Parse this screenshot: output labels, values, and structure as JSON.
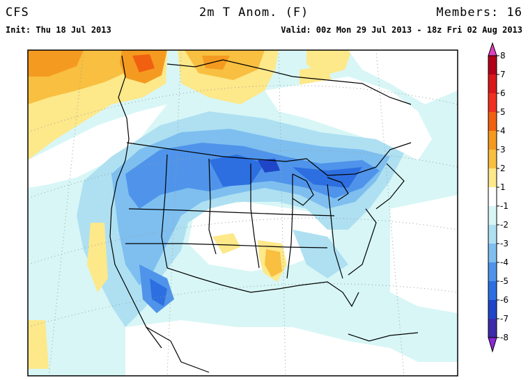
{
  "header": {
    "model": "CFS",
    "title": "2m T Anom. (F)",
    "members": "Members: 16",
    "init": "Init: Thu 18 Jul 2013",
    "valid": "Valid: 00z Mon 29 Jul 2013 - 18z Fri 02 Aug 2013"
  },
  "colorbar": {
    "labels": [
      "8",
      "7",
      "6",
      "5",
      "4",
      "3",
      "2",
      "1",
      "-1",
      "-2",
      "-3",
      "-4",
      "-5",
      "-6",
      "-7",
      "-8"
    ],
    "colors": {
      "top_arrow": "#e040c0",
      "8_to_7": "#b00018",
      "7_to_6": "#d81818",
      "6_to_5": "#f03020",
      "5_to_4": "#f06010",
      "4_to_3": "#f59a20",
      "3_to_2": "#f8bf40",
      "2_to_1": "#fde88a",
      "1_to_-1": "#ffffff",
      "-1_to_-2": "#d8f6f6",
      "-2_to_-3": "#aee0f2",
      "-3_to_-4": "#7ebff0",
      "-4_to_-5": "#4f94ea",
      "-5_to_-6": "#2d6fe0",
      "-6_to_-7": "#2046c8",
      "-7_to_-8": "#3c2aa8",
      "bottom_arrow": "#8a28d8"
    }
  }
}
